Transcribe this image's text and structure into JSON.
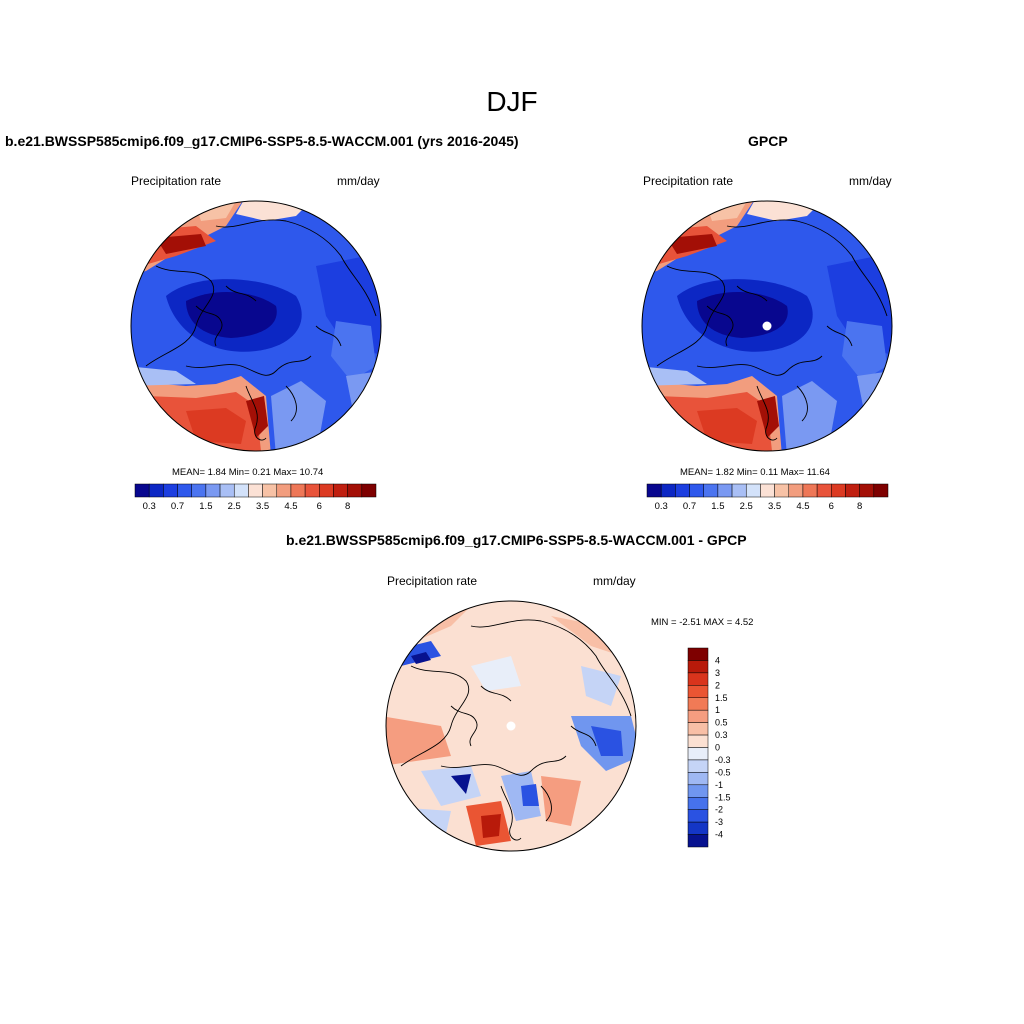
{
  "figure": {
    "season_title": "DJF"
  },
  "panels": [
    {
      "title": "b.e21.BWSSP585cmip6.f09_g17.CMIP6-SSP5-8.5-WACCM.001 (yrs 2016-2045)",
      "variable": "Precipitation rate",
      "units": "mm/day",
      "stats_text": "MEAN=   1.84  Min=    0.21  Max=  10.74"
    },
    {
      "title": "GPCP",
      "variable": "Precipitation rate",
      "units": "mm/day",
      "stats_text": "MEAN=   1.82  Min=    0.11  Max=  11.64"
    },
    {
      "title": "b.e21.BWSSP585cmip6.f09_g17.CMIP6-SSP5-8.5-WACCM.001 - GPCP",
      "variable": "Precipitation rate",
      "units": "mm/day",
      "stats_text": "MIN =  -2.51 MAX =    4.52"
    }
  ],
  "colorbar_abs": {
    "tick_labels": [
      "0.3",
      "0.7",
      "1.5",
      "2.5",
      "3.5",
      "4.5",
      "6",
      "8"
    ],
    "levels": [
      "0.2",
      "0.3",
      "0.5",
      "0.7",
      "1",
      "1.5",
      "2",
      "2.5",
      "3",
      "3.5",
      "4",
      "4.5",
      "5",
      "6",
      "7",
      "8"
    ],
    "colors": [
      "#08078f",
      "#0c27c4",
      "#1c3ee0",
      "#2e58ec",
      "#4b74f0",
      "#7a99f2",
      "#a9bff5",
      "#d3e2fa",
      "#fbe1d5",
      "#f7c2a6",
      "#f29d7e",
      "#ee7757",
      "#e8533a",
      "#dc3a22",
      "#c01f10",
      "#a30f06",
      "#7e0000"
    ]
  },
  "colorbar_diff": {
    "labels": [
      "4",
      "3",
      "2",
      "1.5",
      "1",
      "0.5",
      "0.3",
      "0",
      "-0.3",
      "-0.5",
      "-1",
      "-1.5",
      "-2",
      "-3",
      "-4"
    ],
    "colors": [
      "#7e0000",
      "#b81a0a",
      "#d9341c",
      "#ea5533",
      "#f17a56",
      "#f59d80",
      "#f8bfa6",
      "#fbe0d2",
      "#e8eef9",
      "#c5d4f6",
      "#9fb8f3",
      "#7096ef",
      "#4672ec",
      "#2a52e2",
      "#1436c6",
      "#07128f"
    ]
  },
  "map_labels": {
    "north_pole_marker": "north-pole"
  }
}
